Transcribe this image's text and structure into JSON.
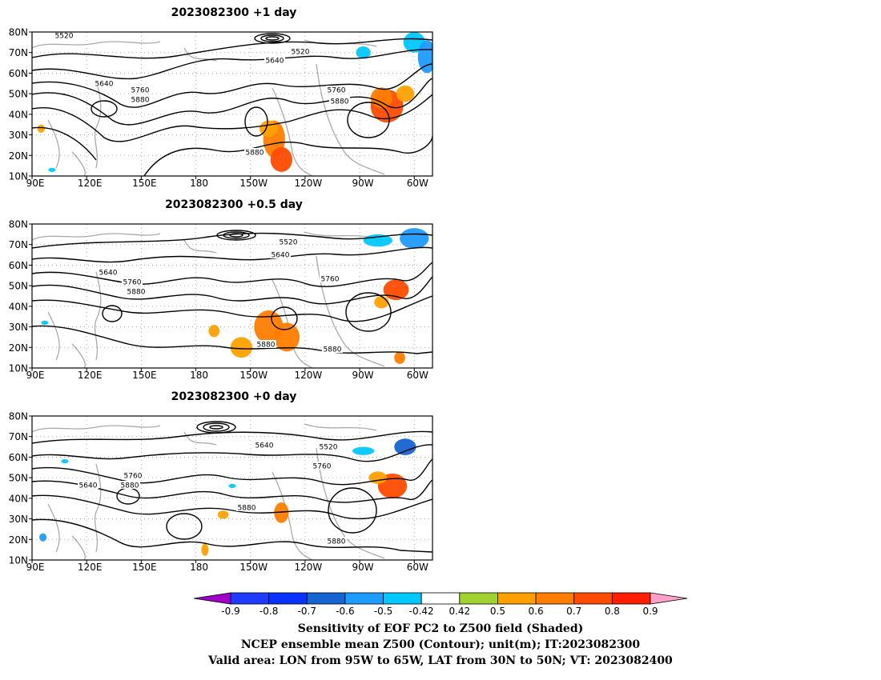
{
  "panels": [
    {
      "title": "2023082300  +1 day",
      "contour_labels": [
        "5520",
        "5520",
        "5640",
        "5640",
        "5760",
        "5880",
        "5760",
        "5880",
        "5880"
      ],
      "shading": [
        {
          "lon": -75,
          "lat": 44,
          "value": 0.75,
          "rx": 9,
          "ry": 8
        },
        {
          "lon": -78,
          "lat": 48,
          "value": 0.62,
          "rx": 6,
          "ry": 5
        },
        {
          "lon": -65,
          "lat": 50,
          "value": 0.5,
          "rx": 5,
          "ry": 4
        },
        {
          "lon": -137,
          "lat": 28,
          "value": 0.6,
          "rx": 6,
          "ry": 9
        },
        {
          "lon": -133,
          "lat": 18,
          "value": 0.7,
          "rx": 6,
          "ry": 6
        },
        {
          "lon": -140,
          "lat": 33,
          "value": 0.5,
          "rx": 5,
          "ry": 4
        },
        {
          "lon": -60,
          "lat": 75,
          "value": -0.5,
          "rx": 6,
          "ry": 5
        },
        {
          "lon": -53,
          "lat": 68,
          "value": -0.6,
          "rx": 5,
          "ry": 8
        },
        {
          "lon": -88,
          "lat": 70,
          "value": -0.45,
          "rx": 4,
          "ry": 3
        },
        {
          "lon": 95,
          "lat": 33,
          "value": 0.5,
          "rx": 2,
          "ry": 2
        },
        {
          "lon": 101,
          "lat": 13,
          "value": -0.5,
          "rx": 2,
          "ry": 1
        }
      ]
    },
    {
      "title": "2023082300  +0.5 day",
      "contour_labels": [
        "5520",
        "5640",
        "5640",
        "5760",
        "5880",
        "5760",
        "5880",
        "5880"
      ],
      "shading": [
        {
          "lon": -70,
          "lat": 48,
          "value": 0.7,
          "rx": 7,
          "ry": 5
        },
        {
          "lon": -78,
          "lat": 42,
          "value": 0.5,
          "rx": 4,
          "ry": 3
        },
        {
          "lon": -140,
          "lat": 30,
          "value": 0.6,
          "rx": 8,
          "ry": 8
        },
        {
          "lon": -130,
          "lat": 25,
          "value": 0.65,
          "rx": 7,
          "ry": 7
        },
        {
          "lon": -155,
          "lat": 20,
          "value": 0.55,
          "rx": 6,
          "ry": 5
        },
        {
          "lon": -170,
          "lat": 28,
          "value": 0.5,
          "rx": 3,
          "ry": 3
        },
        {
          "lon": -68,
          "lat": 15,
          "value": 0.6,
          "rx": 3,
          "ry": 3
        },
        {
          "lon": -60,
          "lat": 73,
          "value": -0.6,
          "rx": 8,
          "ry": 5
        },
        {
          "lon": -80,
          "lat": 72,
          "value": -0.45,
          "rx": 8,
          "ry": 3
        },
        {
          "lon": 97,
          "lat": 32,
          "value": -0.5,
          "rx": 2,
          "ry": 1
        }
      ]
    },
    {
      "title": "2023082300  +0 day",
      "contour_labels": [
        "5640",
        "5520",
        "5760",
        "5640",
        "5760",
        "5880",
        "5880",
        "5880"
      ],
      "shading": [
        {
          "lon": -72,
          "lat": 46,
          "value": 0.7,
          "rx": 8,
          "ry": 6
        },
        {
          "lon": -80,
          "lat": 50,
          "value": 0.55,
          "rx": 5,
          "ry": 3
        },
        {
          "lon": -133,
          "lat": 33,
          "value": 0.6,
          "rx": 4,
          "ry": 5
        },
        {
          "lon": -165,
          "lat": 32,
          "value": 0.5,
          "rx": 3,
          "ry": 2
        },
        {
          "lon": -175,
          "lat": 15,
          "value": 0.5,
          "rx": 2,
          "ry": 3
        },
        {
          "lon": -65,
          "lat": 65,
          "value": -0.7,
          "rx": 6,
          "ry": 4
        },
        {
          "lon": -88,
          "lat": 63,
          "value": -0.5,
          "rx": 6,
          "ry": 2
        },
        {
          "lon": 96,
          "lat": 21,
          "value": -0.6,
          "rx": 2,
          "ry": 2
        },
        {
          "lon": 108,
          "lat": 58,
          "value": -0.45,
          "rx": 2,
          "ry": 1
        },
        {
          "lon": -160,
          "lat": 46,
          "value": -0.45,
          "rx": 2,
          "ry": 1
        }
      ]
    }
  ],
  "lat_ticks": [
    "10N",
    "20N",
    "30N",
    "40N",
    "50N",
    "60N",
    "70N",
    "80N"
  ],
  "lat_values": [
    10,
    20,
    30,
    40,
    50,
    60,
    70,
    80
  ],
  "lon_ticks": [
    "90E",
    "120E",
    "150E",
    "180",
    "150W",
    "120W",
    "90W",
    "60W"
  ],
  "lon_values": [
    90,
    120,
    150,
    180,
    210,
    240,
    270,
    300
  ],
  "lon_range": [
    90,
    310
  ],
  "lat_range": [
    10,
    80
  ],
  "colorbar": {
    "levels": [
      "-0.9",
      "-0.8",
      "-0.7",
      "-0.6",
      "-0.5",
      "-0.42",
      "0.42",
      "0.5",
      "0.6",
      "0.7",
      "0.8",
      "0.9"
    ],
    "colors": [
      "#a000c8",
      "#1e3cff",
      "#0a32ff",
      "#1464d2",
      "#1e9bff",
      "#00c8ff",
      "#ffffff",
      "#a0d232",
      "#ffa000",
      "#ff7d00",
      "#ff4b00",
      "#ff1e00",
      "#ffa0c8"
    ]
  },
  "caption": {
    "line1": "Sensitivity of EOF PC2 to Z500 field (Shaded)",
    "line2": "NCEP ensemble mean Z500 (Contour); unit(m); IT:2023082300",
    "line3": "Valid area: LON from 95W to 65W, LAT from 30N to 50N; VT: 2023082400"
  }
}
